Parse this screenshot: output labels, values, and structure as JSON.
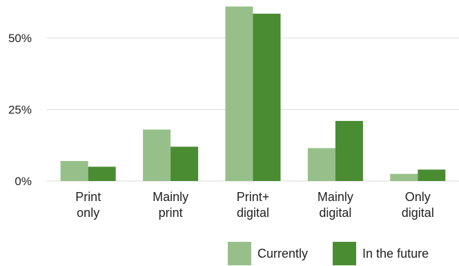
{
  "chart_data": {
    "type": "bar",
    "categories": [
      "Print only",
      "Mainly print",
      "Print+ digital",
      "Mainly digital",
      "Only digital"
    ],
    "category_lines": [
      [
        "Print",
        "only"
      ],
      [
        "Mainly",
        "print"
      ],
      [
        "Print+",
        "digital"
      ],
      [
        "Mainly",
        "digital"
      ],
      [
        "Only",
        "digital"
      ]
    ],
    "series": [
      {
        "name": "Currently",
        "values": [
          7,
          18,
          61,
          11.5,
          2.5
        ],
        "color": "#97bf8a"
      },
      {
        "name": "In the future",
        "values": [
          5,
          12,
          58.5,
          21,
          4
        ],
        "color": "#4a8c32"
      }
    ],
    "y_ticks": [
      0,
      25,
      50
    ],
    "y_tick_labels": [
      "0%",
      "25%",
      "50%"
    ],
    "ylim": [
      0,
      61
    ],
    "grid": true,
    "legend_position": "bottom-right"
  }
}
